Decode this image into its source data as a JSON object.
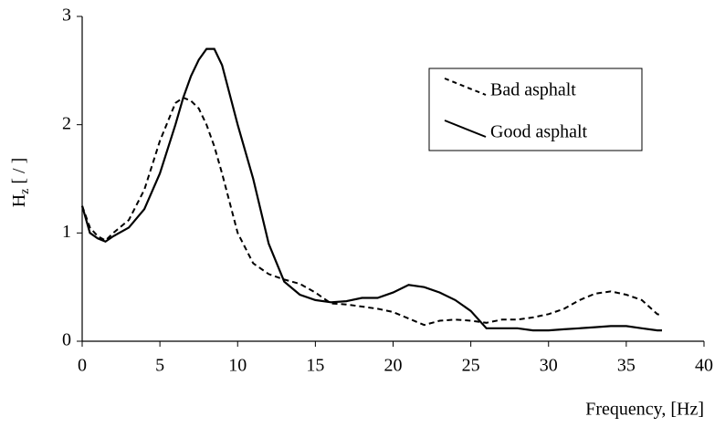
{
  "chart_data": {
    "type": "line",
    "ylabel": {
      "base": "H",
      "sub": "z",
      "rest": " [ / ]"
    },
    "xlabel": "Frequency, [Hz]",
    "x": [
      0,
      0.5,
      1,
      1.5,
      2,
      3,
      4,
      5,
      6,
      6.5,
      7,
      7.5,
      8,
      8.5,
      9,
      10,
      11,
      12,
      13,
      14,
      15,
      16,
      17,
      18,
      19,
      20,
      21,
      22,
      23,
      24,
      25,
      26,
      27,
      28,
      29,
      30,
      31,
      32,
      33,
      34,
      35,
      36,
      37,
      37.3
    ],
    "series": [
      {
        "name": "Bad asphalt",
        "color": "#000000",
        "style": "dashed",
        "values": [
          1.25,
          1.05,
          0.97,
          0.93,
          1.0,
          1.12,
          1.4,
          1.85,
          2.2,
          2.25,
          2.22,
          2.15,
          2.0,
          1.8,
          1.55,
          1.0,
          0.72,
          0.62,
          0.57,
          0.53,
          0.45,
          0.35,
          0.34,
          0.32,
          0.3,
          0.27,
          0.21,
          0.15,
          0.19,
          0.2,
          0.19,
          0.17,
          0.2,
          0.2,
          0.22,
          0.25,
          0.3,
          0.38,
          0.44,
          0.46,
          0.43,
          0.38,
          0.25,
          0.24
        ]
      },
      {
        "name": "Good asphalt",
        "color": "#000000",
        "style": "solid",
        "values": [
          1.25,
          1.0,
          0.95,
          0.92,
          0.97,
          1.05,
          1.22,
          1.55,
          2.0,
          2.25,
          2.45,
          2.6,
          2.7,
          2.7,
          2.55,
          2.0,
          1.5,
          0.9,
          0.55,
          0.43,
          0.38,
          0.36,
          0.37,
          0.4,
          0.4,
          0.45,
          0.52,
          0.5,
          0.45,
          0.38,
          0.28,
          0.12,
          0.12,
          0.12,
          0.1,
          0.1,
          0.11,
          0.12,
          0.13,
          0.14,
          0.14,
          0.12,
          0.1,
          0.1
        ]
      }
    ],
    "xlim": [
      0,
      40
    ],
    "xticks": [
      0,
      5,
      10,
      15,
      20,
      25,
      30,
      35,
      40
    ],
    "ylim": [
      0,
      3
    ],
    "yticks": [
      0,
      1,
      2,
      3
    ],
    "grid": false
  }
}
